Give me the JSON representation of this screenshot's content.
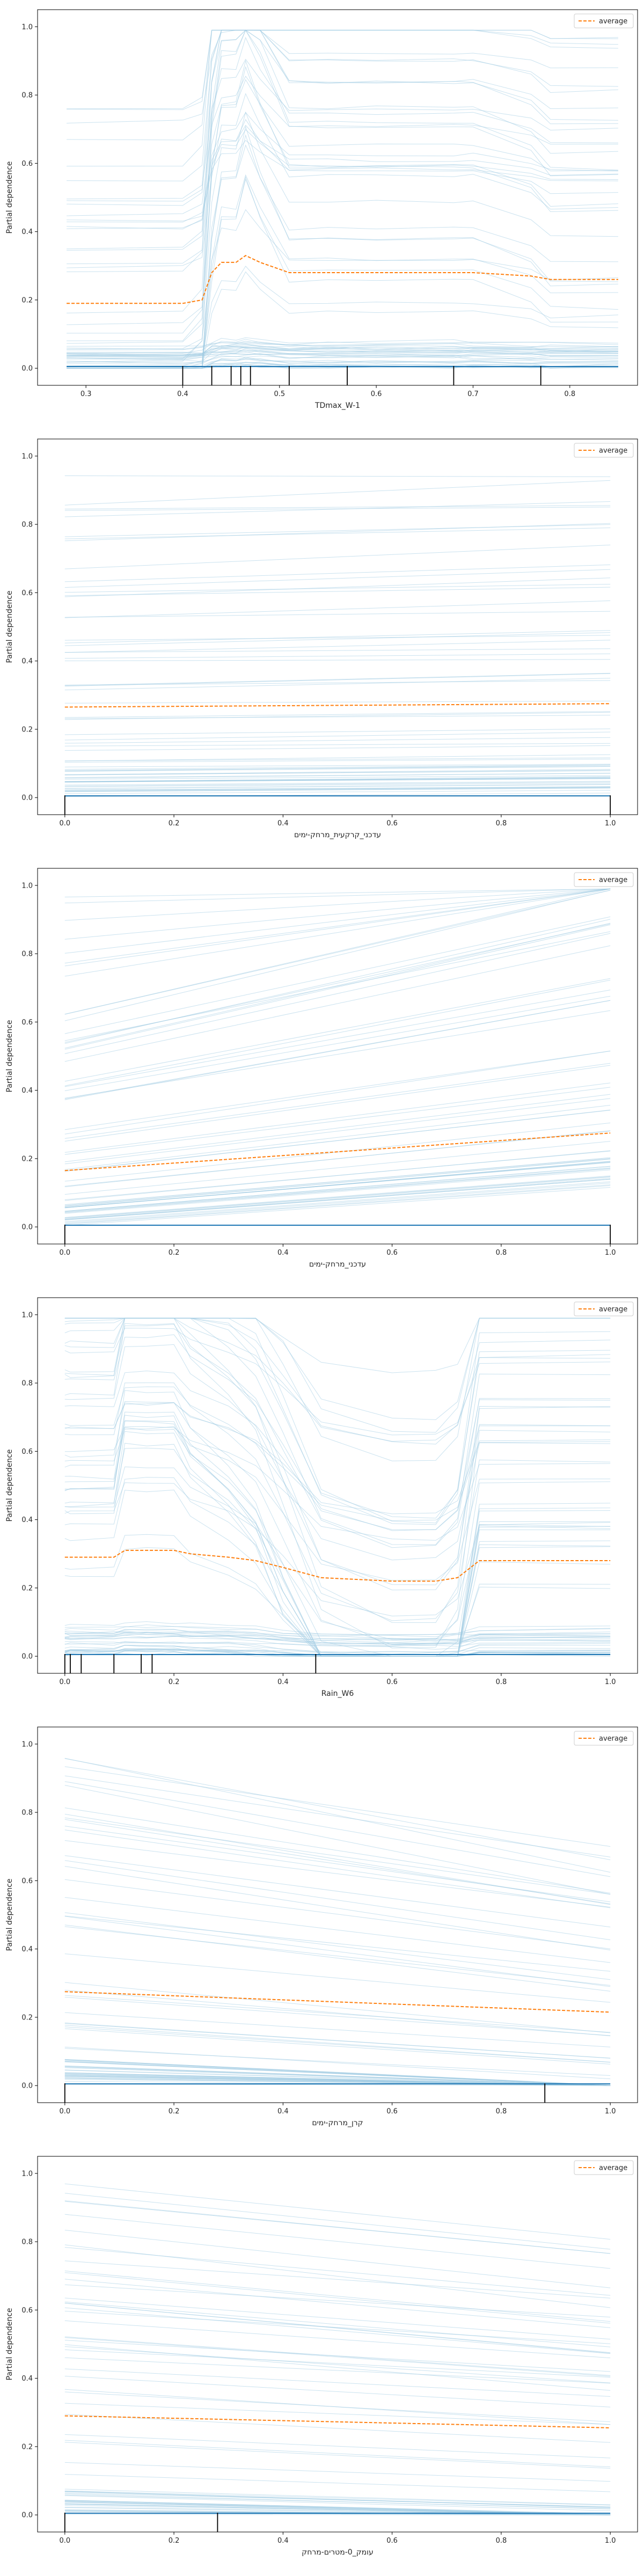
{
  "figure": {
    "ylabel": "Partial dependence",
    "legend_label": "average"
  },
  "colors": {
    "ice": "#9ecae1",
    "average": "#ff7f0e",
    "rug": "#000000",
    "base": "#1f77b4"
  },
  "chart_data": [
    {
      "type": "line",
      "xlabel": "TDmax_W-1",
      "ylabel": "Partial dependence",
      "xlim": [
        0.25,
        0.87
      ],
      "ylim": [
        -0.05,
        1.05
      ],
      "xticks": [
        0.3,
        0.4,
        0.5,
        0.6,
        0.7,
        0.8
      ],
      "xtick_labels": [
        "0.3",
        "0.4",
        "0.5",
        "0.6",
        "0.7",
        "0.8"
      ],
      "yticks": [
        0.0,
        0.2,
        0.4,
        0.6,
        0.8,
        1.0
      ],
      "ytick_labels": [
        "0.0",
        "0.2",
        "0.4",
        "0.6",
        "0.8",
        "1.0"
      ],
      "legend": "top-right",
      "x": [
        0.28,
        0.4,
        0.42,
        0.43,
        0.44,
        0.455,
        0.465,
        0.48,
        0.51,
        0.55,
        0.6,
        0.68,
        0.7,
        0.76,
        0.78,
        0.85
      ],
      "average": [
        0.19,
        0.19,
        0.2,
        0.28,
        0.31,
        0.31,
        0.33,
        0.31,
        0.28,
        0.28,
        0.28,
        0.28,
        0.28,
        0.27,
        0.26,
        0.26
      ],
      "rug": [
        0.4,
        0.43,
        0.45,
        0.46,
        0.47,
        0.51,
        0.57,
        0.68,
        0.77
      ]
    },
    {
      "type": "line",
      "xlabel": "עדכני_קרקעית_מרחק-ימים",
      "ylabel": "Partial dependence",
      "xlim": [
        -0.05,
        1.05
      ],
      "ylim": [
        -0.05,
        1.05
      ],
      "xticks": [
        0.0,
        0.2,
        0.4,
        0.6,
        0.8,
        1.0
      ],
      "xtick_labels": [
        "0.0",
        "0.2",
        "0.4",
        "0.6",
        "0.8",
        "1.0"
      ],
      "yticks": [
        0.0,
        0.2,
        0.4,
        0.6,
        0.8,
        1.0
      ],
      "ytick_labels": [
        "0.0",
        "0.2",
        "0.4",
        "0.6",
        "0.8",
        "1.0"
      ],
      "legend": "top-right",
      "x": [
        0.0,
        1.0
      ],
      "average": [
        0.265,
        0.275
      ],
      "rug": [
        0.0,
        1.0
      ]
    },
    {
      "type": "line",
      "xlabel": "עדכני_מרחק-ימים",
      "ylabel": "Partial dependence",
      "xlim": [
        -0.05,
        1.05
      ],
      "ylim": [
        -0.05,
        1.05
      ],
      "xticks": [
        0.0,
        0.2,
        0.4,
        0.6,
        0.8,
        1.0
      ],
      "xtick_labels": [
        "0.0",
        "0.2",
        "0.4",
        "0.6",
        "0.8",
        "1.0"
      ],
      "yticks": [
        0.0,
        0.2,
        0.4,
        0.6,
        0.8,
        1.0
      ],
      "ytick_labels": [
        "0.0",
        "0.2",
        "0.4",
        "0.6",
        "0.8",
        "1.0"
      ],
      "legend": "top-right",
      "x": [
        0.0,
        1.0
      ],
      "average": [
        0.165,
        0.275
      ],
      "rug": [
        0.0,
        1.0
      ]
    },
    {
      "type": "line",
      "xlabel": "Rain_W6",
      "ylabel": "Partial dependence",
      "xlim": [
        -0.05,
        1.05
      ],
      "ylim": [
        -0.05,
        1.05
      ],
      "xticks": [
        0.0,
        0.2,
        0.4,
        0.6,
        0.8,
        1.0
      ],
      "xtick_labels": [
        "0.0",
        "0.2",
        "0.4",
        "0.6",
        "0.8",
        "1.0"
      ],
      "yticks": [
        0.0,
        0.2,
        0.4,
        0.6,
        0.8,
        1.0
      ],
      "ytick_labels": [
        "0.0",
        "0.2",
        "0.4",
        "0.6",
        "0.8",
        "1.0"
      ],
      "legend": "top-right",
      "x": [
        0.0,
        0.01,
        0.09,
        0.11,
        0.15,
        0.2,
        0.23,
        0.3,
        0.35,
        0.4,
        0.47,
        0.6,
        0.68,
        0.72,
        0.76,
        1.0
      ],
      "average": [
        0.29,
        0.29,
        0.29,
        0.31,
        0.31,
        0.31,
        0.3,
        0.29,
        0.28,
        0.26,
        0.23,
        0.22,
        0.22,
        0.23,
        0.28,
        0.28
      ],
      "rug": [
        0.0,
        0.01,
        0.03,
        0.09,
        0.14,
        0.16,
        0.46
      ]
    },
    {
      "type": "line",
      "xlabel": "קרן_מרחק-ימים",
      "ylabel": "Partial dependence",
      "xlim": [
        -0.05,
        1.05
      ],
      "ylim": [
        -0.05,
        1.05
      ],
      "xticks": [
        0.0,
        0.2,
        0.4,
        0.6,
        0.8,
        1.0
      ],
      "xtick_labels": [
        "0.0",
        "0.2",
        "0.4",
        "0.6",
        "0.8",
        "1.0"
      ],
      "yticks": [
        0.0,
        0.2,
        0.4,
        0.6,
        0.8,
        1.0
      ],
      "ytick_labels": [
        "0.0",
        "0.2",
        "0.4",
        "0.6",
        "0.8",
        "1.0"
      ],
      "legend": "top-right",
      "x": [
        0.0,
        1.0
      ],
      "average": [
        0.275,
        0.215
      ],
      "rug": [
        0.0,
        0.88
      ]
    },
    {
      "type": "line",
      "xlabel": "עומק_0-מטרים-מרחק",
      "ylabel": "Partial dependence",
      "xlim": [
        -0.05,
        1.05
      ],
      "ylim": [
        -0.05,
        1.05
      ],
      "xticks": [
        0.0,
        0.2,
        0.4,
        0.6,
        0.8,
        1.0
      ],
      "xtick_labels": [
        "0.0",
        "0.2",
        "0.4",
        "0.6",
        "0.8",
        "1.0"
      ],
      "yticks": [
        0.0,
        0.2,
        0.4,
        0.6,
        0.8,
        1.0
      ],
      "ytick_labels": [
        "0.0",
        "0.2",
        "0.4",
        "0.6",
        "0.8",
        "1.0"
      ],
      "legend": "top-right",
      "x": [
        0.0,
        1.0
      ],
      "average": [
        0.29,
        0.255
      ],
      "rug": [
        0.0,
        0.28
      ]
    }
  ]
}
